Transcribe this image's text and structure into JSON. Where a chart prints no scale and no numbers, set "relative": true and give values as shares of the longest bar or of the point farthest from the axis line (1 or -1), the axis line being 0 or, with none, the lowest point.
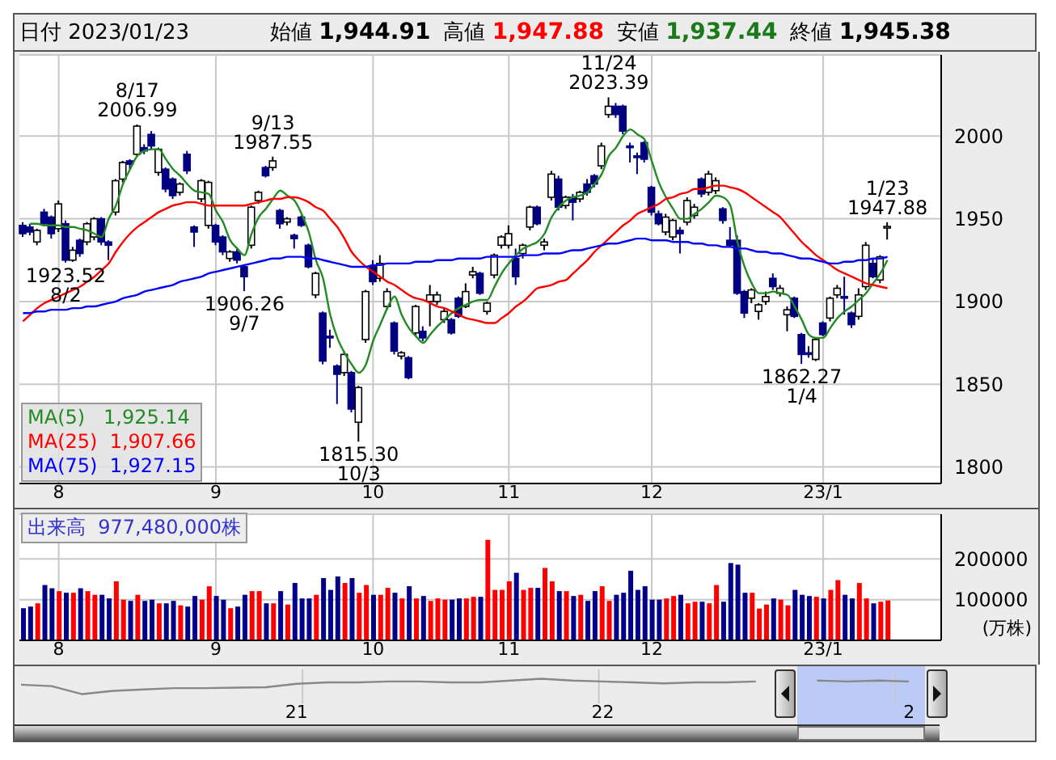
{
  "chart_data": [
    {
      "type": "candlestick",
      "title": "日付 2023/01/23",
      "annotations": [
        "始値 1,944.91",
        "高値 1,947.88",
        "安値 1,937.44",
        "終値 1,945.38",
        {
          "text": "8/17\n2006.99",
          "y": 2006.99
        },
        {
          "text": "1923.52\n8/2",
          "y": 1923.52
        },
        {
          "text": "9/13\n1987.55",
          "y": 1987.55
        },
        {
          "text": "1906.26\n9/7",
          "y": 1906.26
        },
        {
          "text": "1815.30\n10/3",
          "y": 1815.3
        },
        {
          "text": "11/24\n2023.39",
          "y": 2023.39
        },
        {
          "text": "1862.27\n1/4",
          "y": 1862.27
        },
        {
          "text": "1/23\n1947.88",
          "y": 1947.88
        }
      ],
      "categories": [
        null,
        null,
        null,
        null,
        null,
        "8",
        null,
        null,
        null,
        null,
        null,
        null,
        null,
        null,
        null,
        null,
        null,
        null,
        null,
        null,
        null,
        null,
        null,
        null,
        null,
        null,
        null,
        "9",
        null,
        null,
        null,
        null,
        null,
        null,
        null,
        null,
        null,
        null,
        null,
        null,
        null,
        null,
        null,
        null,
        null,
        null,
        null,
        null,
        null,
        "10",
        null,
        null,
        null,
        null,
        null,
        null,
        null,
        null,
        null,
        null,
        null,
        null,
        null,
        null,
        null,
        null,
        null,
        null,
        "11",
        null,
        null,
        null,
        null,
        null,
        null,
        null,
        null,
        null,
        null,
        null,
        null,
        null,
        null,
        null,
        null,
        null,
        null,
        null,
        "12",
        null,
        null,
        null,
        null,
        null,
        null,
        null,
        null,
        null,
        null,
        null,
        null,
        null,
        null,
        null,
        null,
        null,
        null,
        null,
        null,
        null,
        null,
        null,
        "23/1",
        null,
        null,
        null,
        null,
        null,
        null,
        null,
        null,
        null
      ],
      "ohlc": [
        [
          1946,
          1948,
          1939,
          1941
        ],
        [
          1945,
          1947,
          1940,
          1942
        ],
        [
          1936,
          1944,
          1934,
          1943
        ],
        [
          1954,
          1956,
          1946,
          1947
        ],
        [
          1951,
          1952,
          1938,
          1941
        ],
        [
          1944,
          1961,
          1942,
          1959
        ],
        [
          1947,
          1949,
          1923.52,
          1925
        ],
        [
          1925,
          1933,
          1924,
          1931
        ],
        [
          1937,
          1938,
          1927,
          1929
        ],
        [
          1936,
          1948,
          1934,
          1947
        ],
        [
          1939,
          1951,
          1937,
          1950
        ],
        [
          1950,
          1951,
          1934,
          1936
        ],
        [
          1936,
          1937,
          1925,
          1934
        ],
        [
          1954,
          1974,
          1952,
          1973
        ],
        [
          1974,
          1985,
          1972,
          1984
        ],
        [
          1985,
          1986,
          1980,
          1983
        ],
        [
          1989,
          2006.99,
          1988,
          2006
        ],
        [
          1993,
          1995,
          1989,
          1991
        ],
        [
          2001,
          2003,
          1992,
          1994
        ],
        [
          1978,
          1993,
          1976,
          1992
        ],
        [
          1980,
          1981,
          1966,
          1968
        ],
        [
          1974,
          1975,
          1962,
          1964
        ],
        [
          1966,
          1972,
          1964,
          1971
        ],
        [
          1989,
          1991,
          1977,
          1979
        ],
        [
          1945,
          1946,
          1933,
          1942
        ],
        [
          1962,
          1974,
          1960,
          1973
        ],
        [
          1946,
          1973,
          1944,
          1972
        ],
        [
          1946,
          1947,
          1934,
          1936
        ],
        [
          1939,
          1940,
          1928,
          1930
        ],
        [
          1926,
          1931,
          1924,
          1930
        ],
        [
          1930,
          1932,
          1923,
          1925
        ],
        [
          1921,
          1922,
          1906.26,
          1915
        ],
        [
          1934,
          1958,
          1932,
          1957
        ],
        [
          1961,
          1967,
          1959,
          1966
        ],
        [
          1981,
          1982,
          1975,
          1976
        ],
        [
          1981,
          1987.55,
          1979,
          1985
        ],
        [
          1955,
          1956,
          1944,
          1947
        ],
        [
          1948,
          1951,
          1946,
          1950
        ],
        [
          1940,
          1941,
          1932,
          1938
        ],
        [
          1951,
          1952,
          1945,
          1946
        ],
        [
          1934,
          1935,
          1920,
          1921
        ],
        [
          1904,
          1918,
          1902,
          1917
        ],
        [
          1893,
          1894,
          1862,
          1864
        ],
        [
          1879,
          1883,
          1872,
          1878
        ],
        [
          1861,
          1862,
          1838,
          1856
        ],
        [
          1857,
          1870,
          1855,
          1868
        ],
        [
          1857,
          1858,
          1833,
          1835
        ],
        [
          1827,
          1849,
          1815.3,
          1848
        ],
        [
          1877,
          1907,
          1875,
          1906
        ],
        [
          1921,
          1925,
          1910,
          1912
        ],
        [
          1914,
          1928,
          1912,
          1923
        ],
        [
          1897,
          1908,
          1895,
          1906
        ],
        [
          1887,
          1888,
          1868,
          1870
        ],
        [
          1867,
          1870,
          1865,
          1869
        ],
        [
          1866,
          1867,
          1853,
          1854
        ],
        [
          1881,
          1898,
          1879,
          1897
        ],
        [
          1882,
          1885,
          1876,
          1878
        ],
        [
          1900,
          1910,
          1885,
          1904
        ],
        [
          1900,
          1906,
          1898,
          1904
        ],
        [
          1889,
          1896,
          1887,
          1894
        ],
        [
          1889,
          1890,
          1880,
          1881
        ],
        [
          1902,
          1903,
          1890,
          1891
        ],
        [
          1897,
          1911,
          1896,
          1906
        ],
        [
          1916,
          1921,
          1914,
          1918
        ],
        [
          1917,
          1918,
          1904,
          1905
        ],
        [
          1894,
          1900,
          1892,
          1899
        ],
        [
          1916,
          1929,
          1914,
          1928
        ],
        [
          1934,
          1940,
          1932,
          1939
        ],
        [
          1934,
          1946,
          1932,
          1941
        ],
        [
          1926,
          1932,
          1910,
          1915
        ],
        [
          1929,
          1935,
          1926,
          1934
        ],
        [
          1945,
          1958,
          1943,
          1957
        ],
        [
          1957,
          1958,
          1946,
          1947
        ],
        [
          1934,
          1938,
          1931,
          1936
        ],
        [
          1963,
          1979,
          1961,
          1977
        ],
        [
          1974,
          1976,
          1955,
          1957
        ],
        [
          1958,
          1964,
          1956,
          1963
        ],
        [
          1963,
          1965,
          1949,
          1960
        ],
        [
          1962,
          1967,
          1960,
          1966
        ],
        [
          1971,
          1974,
          1964,
          1966
        ],
        [
          1976,
          1977,
          1969,
          1971
        ],
        [
          1982,
          1996,
          1980,
          1994
        ],
        [
          2013,
          2023.39,
          2011,
          2018
        ],
        [
          2018,
          2020,
          2011,
          2013
        ],
        [
          2018,
          2019,
          2001,
          2003
        ],
        [
          1994,
          1996,
          1984,
          1993
        ],
        [
          1988,
          1990,
          1977,
          1987
        ],
        [
          1996,
          1997,
          1984,
          1986
        ],
        [
          1969,
          1970,
          1952,
          1954
        ],
        [
          1953,
          1955,
          1946,
          1947
        ],
        [
          1942,
          1953,
          1940,
          1951
        ],
        [
          1939,
          1950,
          1937,
          1949
        ],
        [
          1943,
          1945,
          1929,
          1941
        ],
        [
          1948,
          1963,
          1946,
          1961
        ],
        [
          1952,
          1959,
          1950,
          1957
        ],
        [
          1974,
          1975,
          1963,
          1965
        ],
        [
          1966,
          1979,
          1964,
          1977
        ],
        [
          1967,
          1975,
          1965,
          1973
        ],
        [
          1956,
          1957,
          1947,
          1949
        ],
        [
          1937,
          1945,
          1933,
          1934
        ],
        [
          1937,
          1940,
          1904,
          1905
        ],
        [
          1906,
          1907,
          1890,
          1893
        ],
        [
          1902,
          1908,
          1899,
          1907
        ],
        [
          1894,
          1899,
          1889,
          1898
        ],
        [
          1900,
          1906,
          1898,
          1903
        ],
        [
          1914,
          1917,
          1907,
          1909
        ],
        [
          1905,
          1910,
          1903,
          1908
        ],
        [
          1892,
          1897,
          1882,
          1895
        ],
        [
          1902,
          1903,
          1890,
          1891
        ],
        [
          1880,
          1881,
          1862.27,
          1868
        ],
        [
          1869,
          1873,
          1866,
          1868
        ],
        [
          1865,
          1878,
          1864,
          1877
        ],
        [
          1887,
          1888,
          1879,
          1880
        ],
        [
          1890,
          1903,
          1888,
          1902
        ],
        [
          1904,
          1910,
          1902,
          1908
        ],
        [
          1903,
          1915,
          1892,
          1902
        ],
        [
          1893,
          1894,
          1884,
          1886
        ],
        [
          1891,
          1908,
          1889,
          1904
        ],
        [
          1909,
          1936,
          1907,
          1934
        ],
        [
          1923,
          1926,
          1914,
          1915
        ],
        [
          1913,
          1928,
          1911,
          1927
        ],
        [
          1944.91,
          1947.88,
          1937.44,
          1945.38
        ]
      ],
      "colors": [
        "#000080",
        "#000080",
        "#ffffff",
        "#000080",
        "#000080",
        "#ffffff",
        "#000080",
        "#ffffff",
        "#000080",
        "#ffffff",
        "#ffffff",
        "#000080",
        "#000080",
        "#ffffff",
        "#ffffff",
        "#000080",
        "#ffffff",
        "#000080",
        "#000080",
        "#ffffff",
        "#000080",
        "#000080",
        "#ffffff",
        "#000080",
        "#000080",
        "#ffffff",
        "#ffffff",
        "#000080",
        "#000080",
        "#ffffff",
        "#000080",
        "#000080",
        "#ffffff",
        "#ffffff",
        "#000080",
        "#ffffff",
        "#000080",
        "#ffffff",
        "#000080",
        "#000080",
        "#000080",
        "#ffffff",
        "#000080",
        "#000080",
        "#000080",
        "#ffffff",
        "#000080",
        "#ffffff",
        "#ffffff",
        "#000080",
        "#ffffff",
        "#ffffff",
        "#000080",
        "#ffffff",
        "#000080",
        "#ffffff",
        "#000080",
        "#ffffff",
        "#ffffff",
        "#ffffff",
        "#000080",
        "#000080",
        "#ffffff",
        "#ffffff",
        "#000080",
        "#ffffff",
        "#ffffff",
        "#ffffff",
        "#ffffff",
        "#000080",
        "#ffffff",
        "#ffffff",
        "#000080",
        "#ffffff",
        "#ffffff",
        "#000080",
        "#ffffff",
        "#000080",
        "#ffffff",
        "#000080",
        "#000080",
        "#ffffff",
        "#ffffff",
        "#000080",
        "#000080",
        "#000080",
        "#000080",
        "#000080",
        "#000080",
        "#000080",
        "#ffffff",
        "#ffffff",
        "#000080",
        "#ffffff",
        "#ffffff",
        "#000080",
        "#ffffff",
        "#ffffff",
        "#000080",
        "#000080",
        "#000080",
        "#000080",
        "#ffffff",
        "#ffffff",
        "#ffffff",
        "#000080",
        "#ffffff",
        "#ffffff",
        "#000080",
        "#000080",
        "#000080",
        "#ffffff",
        "#000080",
        "#ffffff",
        "#ffffff",
        "#000080",
        "#000080",
        "#ffffff",
        "#ffffff",
        "#000080",
        "#ffffff",
        "#ffffff"
      ],
      "series": [
        {
          "type": "line",
          "name": "MA(5)   1,925.14",
          "color": "#228b22",
          "values": [
            null,
            1947,
            1947,
            1946,
            1946,
            1946,
            1945,
            1945,
            1944,
            1943,
            1941,
            1939,
            1950,
            1958,
            1971,
            1980,
            1988,
            1991,
            1992,
            1992,
            1986,
            1980,
            1976,
            1971,
            1967,
            1966,
            1965,
            1955,
            1948,
            1937,
            1932,
            1928,
            1941,
            1951,
            1956,
            1962,
            1967,
            1964,
            1961,
            1953,
            1942,
            1925,
            1914,
            1892,
            1878,
            1869,
            1862,
            1857,
            1862,
            1876,
            1886,
            1896,
            1903,
            1892,
            1884,
            1879,
            1875,
            1880,
            1885,
            1889,
            1893,
            1896,
            1898,
            1900,
            1901,
            1901,
            1909,
            1917,
            1923,
            1928,
            1932,
            1934,
            1936,
            1941,
            1951,
            1957,
            1961,
            1963,
            1964,
            1966,
            1971,
            1977,
            1988,
            1993,
            2000,
            2004,
            2001,
            1998,
            1985,
            1972,
            1963,
            1956,
            1950,
            1950,
            1953,
            1956,
            1960,
            1964,
            1963,
            1958,
            1936,
            1921,
            1911,
            1905,
            1905,
            1906,
            1905,
            1904,
            1897,
            1889,
            1880,
            1878,
            1878,
            1884,
            1890,
            1894,
            1897,
            1901,
            1905,
            1911,
            1917,
            1925
          ]
        },
        {
          "type": "line",
          "name": "MA(25)  1,907.66",
          "color": "#ff0000",
          "values": [
            1888,
            1892,
            1896,
            1899,
            1901,
            1903,
            1905,
            1907,
            1909,
            1912,
            1915,
            1919,
            1923,
            1930,
            1936,
            1941,
            1945,
            1948,
            1951,
            1954,
            1956,
            1958,
            1959,
            1960,
            1960,
            1959,
            1958,
            1958,
            1958,
            1958,
            1958,
            1958,
            1959,
            1960,
            1961,
            1962,
            1962,
            1963,
            1963,
            1962,
            1960,
            1957,
            1955,
            1950,
            1945,
            1938,
            1930,
            1925,
            1921,
            1918,
            1915,
            1912,
            1910,
            1907,
            1904,
            1902,
            1901,
            1899,
            1897,
            1896,
            1894,
            1892,
            1890,
            1889,
            1888,
            1887,
            1887,
            1890,
            1893,
            1897,
            1900,
            1904,
            1908,
            1909,
            1910,
            1912,
            1913,
            1917,
            1921,
            1925,
            1930,
            1934,
            1938,
            1942,
            1946,
            1949,
            1953,
            1955,
            1957,
            1959,
            1962,
            1963,
            1965,
            1966,
            1968,
            1968,
            1969,
            1970,
            1970,
            1969,
            1968,
            1966,
            1963,
            1960,
            1957,
            1954,
            1951,
            1946,
            1941,
            1936,
            1932,
            1928,
            1925,
            1922,
            1919,
            1917,
            1915,
            1913,
            1911,
            1910,
            1909,
            1908
          ]
        },
        {
          "type": "line",
          "name": "MA(75)  1,927.15",
          "color": "#0000ff",
          "values": [
            1893,
            1893,
            1894,
            1894,
            1895,
            1895,
            1895,
            1896,
            1896,
            1897,
            1897,
            1898,
            1899,
            1900,
            1902,
            1903,
            1904,
            1906,
            1907,
            1908,
            1909,
            1910,
            1912,
            1913,
            1914,
            1915,
            1917,
            1918,
            1919,
            1920,
            1921,
            1922,
            1923,
            1924,
            1925,
            1926,
            1926,
            1927,
            1927,
            1927,
            1926,
            1926,
            1925,
            1924,
            1923,
            1922,
            1921,
            1921,
            1921,
            1922,
            1922,
            1923,
            1923,
            1923,
            1923,
            1924,
            1924,
            1924,
            1925,
            1925,
            1925,
            1926,
            1926,
            1926,
            1926,
            1927,
            1927,
            1927,
            1927,
            1927,
            1928,
            1928,
            1928,
            1929,
            1929,
            1929,
            1930,
            1931,
            1931,
            1932,
            1933,
            1934,
            1935,
            1935,
            1936,
            1937,
            1938,
            1938,
            1937,
            1937,
            1937,
            1936,
            1936,
            1936,
            1935,
            1935,
            1934,
            1934,
            1933,
            1933,
            1932,
            1932,
            1931,
            1930,
            1930,
            1929,
            1929,
            1928,
            1927,
            1926,
            1926,
            1925,
            1924,
            1923,
            1923,
            1924,
            1924,
            1925,
            1925,
            1926,
            1926,
            1927
          ]
        }
      ],
      "ylim": [
        1790,
        2049
      ],
      "yticks": [
        1800,
        1850,
        1900,
        1950,
        2000
      ],
      "grid": true,
      "legend": "bottom left"
    },
    {
      "type": "bar",
      "title": "出来高  977,480,000株",
      "ylabel": "(万株)",
      "categories": [
        null,
        null,
        null,
        null,
        null,
        "8",
        null,
        null,
        null,
        null,
        null,
        null,
        null,
        null,
        null,
        null,
        null,
        null,
        null,
        null,
        null,
        null,
        null,
        null,
        null,
        null,
        null,
        "9",
        null,
        null,
        null,
        null,
        null,
        null,
        null,
        null,
        null,
        null,
        null,
        null,
        null,
        null,
        null,
        null,
        null,
        null,
        null,
        null,
        null,
        "10",
        null,
        null,
        null,
        null,
        null,
        null,
        null,
        null,
        null,
        null,
        null,
        null,
        null,
        null,
        null,
        null,
        null,
        null,
        "11",
        null,
        null,
        null,
        null,
        null,
        null,
        null,
        null,
        null,
        null,
        null,
        null,
        null,
        null,
        null,
        null,
        null,
        null,
        null,
        "12",
        null,
        null,
        null,
        null,
        null,
        null,
        null,
        null,
        null,
        null,
        null,
        null,
        null,
        null,
        null,
        null,
        null,
        null,
        null,
        null,
        null,
        null,
        null,
        "23/1",
        null,
        null,
        null,
        null,
        null,
        null,
        null,
        null,
        null
      ],
      "values": [
        79000,
        83000,
        91000,
        136000,
        128000,
        121000,
        117000,
        117000,
        128000,
        121000,
        112000,
        112000,
        103000,
        145000,
        100000,
        97000,
        112000,
        97000,
        100000,
        91000,
        91000,
        97000,
        86000,
        83000,
        109000,
        100000,
        133000,
        109000,
        100000,
        79000,
        83000,
        112000,
        121000,
        121000,
        91000,
        91000,
        121000,
        88000,
        141000,
        103000,
        103000,
        112000,
        153000,
        124000,
        157000,
        141000,
        153000,
        117000,
        136000,
        112000,
        112000,
        129000,
        117000,
        103000,
        133000,
        103000,
        109000,
        97000,
        103000,
        100000,
        100000,
        103000,
        103000,
        107000,
        107000,
        247000,
        124000,
        124000,
        145000,
        166000,
        124000,
        129000,
        129000,
        178000,
        145000,
        121000,
        121000,
        109000,
        112000,
        97000,
        121000,
        133000,
        97000,
        112000,
        117000,
        171000,
        124000,
        133000,
        100000,
        100000,
        103000,
        109000,
        112000,
        91000,
        95000,
        95000,
        91000,
        136000,
        95000,
        190000,
        186000,
        117000,
        117000,
        78000,
        88000,
        103000,
        100000,
        86000,
        124000,
        112000,
        109000,
        107000,
        103000,
        124000,
        148000,
        112000,
        103000,
        141000,
        103000,
        91000,
        95000,
        98000
      ],
      "colors": [
        "#00008b",
        "#00008b",
        "#ff0000",
        "#00008b",
        "#00008b",
        "#ff0000",
        "#00008b",
        "#ff0000",
        "#00008b",
        "#ff0000",
        "#ff0000",
        "#00008b",
        "#00008b",
        "#ff0000",
        "#ff0000",
        "#00008b",
        "#ff0000",
        "#00008b",
        "#00008b",
        "#ff0000",
        "#00008b",
        "#00008b",
        "#ff0000",
        "#00008b",
        "#00008b",
        "#ff0000",
        "#ff0000",
        "#00008b",
        "#00008b",
        "#ff0000",
        "#00008b",
        "#00008b",
        "#ff0000",
        "#ff0000",
        "#00008b",
        "#ff0000",
        "#00008b",
        "#ff0000",
        "#00008b",
        "#00008b",
        "#00008b",
        "#ff0000",
        "#00008b",
        "#00008b",
        "#00008b",
        "#ff0000",
        "#00008b",
        "#ff0000",
        "#ff0000",
        "#00008b",
        "#ff0000",
        "#ff0000",
        "#00008b",
        "#ff0000",
        "#00008b",
        "#ff0000",
        "#00008b",
        "#ff0000",
        "#ff0000",
        "#ff0000",
        "#00008b",
        "#00008b",
        "#ff0000",
        "#ff0000",
        "#00008b",
        "#ff0000",
        "#ff0000",
        "#ff0000",
        "#ff0000",
        "#00008b",
        "#ff0000",
        "#ff0000",
        "#00008b",
        "#ff0000",
        "#ff0000",
        "#00008b",
        "#ff0000",
        "#00008b",
        "#ff0000",
        "#00008b",
        "#00008b",
        "#ff0000",
        "#ff0000",
        "#00008b",
        "#00008b",
        "#00008b",
        "#00008b",
        "#00008b",
        "#00008b",
        "#00008b",
        "#ff0000",
        "#ff0000",
        "#00008b",
        "#ff0000",
        "#ff0000",
        "#00008b",
        "#ff0000",
        "#ff0000",
        "#00008b",
        "#00008b",
        "#00008b",
        "#00008b",
        "#ff0000",
        "#ff0000",
        "#ff0000",
        "#00008b",
        "#ff0000",
        "#ff0000",
        "#00008b",
        "#00008b",
        "#00008b",
        "#ff0000",
        "#00008b",
        "#ff0000",
        "#ff0000",
        "#00008b",
        "#00008b",
        "#ff0000",
        "#ff0000",
        "#00008b",
        "#ff0000",
        "#ff0000"
      ],
      "ylim": [
        0,
        310000
      ],
      "yticks": [
        100000,
        200000
      ],
      "grid": true
    },
    {
      "type": "line",
      "relative": true,
      "categories": [
        null,
        null,
        null,
        null,
        null,
        null,
        null,
        null,
        null,
        "21",
        null,
        null,
        null,
        null,
        null,
        null,
        null,
        null,
        null,
        "22",
        null,
        null,
        null,
        null,
        null,
        null,
        null,
        null,
        null,
        "2",
        null
      ],
      "values": [
        0.61,
        0.52,
        0,
        0.21,
        0.3,
        0.39,
        0.39,
        0.42,
        0.45,
        0.67,
        0.76,
        0.76,
        0.82,
        0.82,
        0.76,
        0.76,
        0.88,
        1,
        0.88,
        0.82,
        0.76,
        0.7,
        0.76,
        0.76,
        0.82,
        null,
        0.88,
        0.82,
        0.88,
        0.82,
        null
      ],
      "color": "#888888",
      "grid": "x"
    }
  ]
}
